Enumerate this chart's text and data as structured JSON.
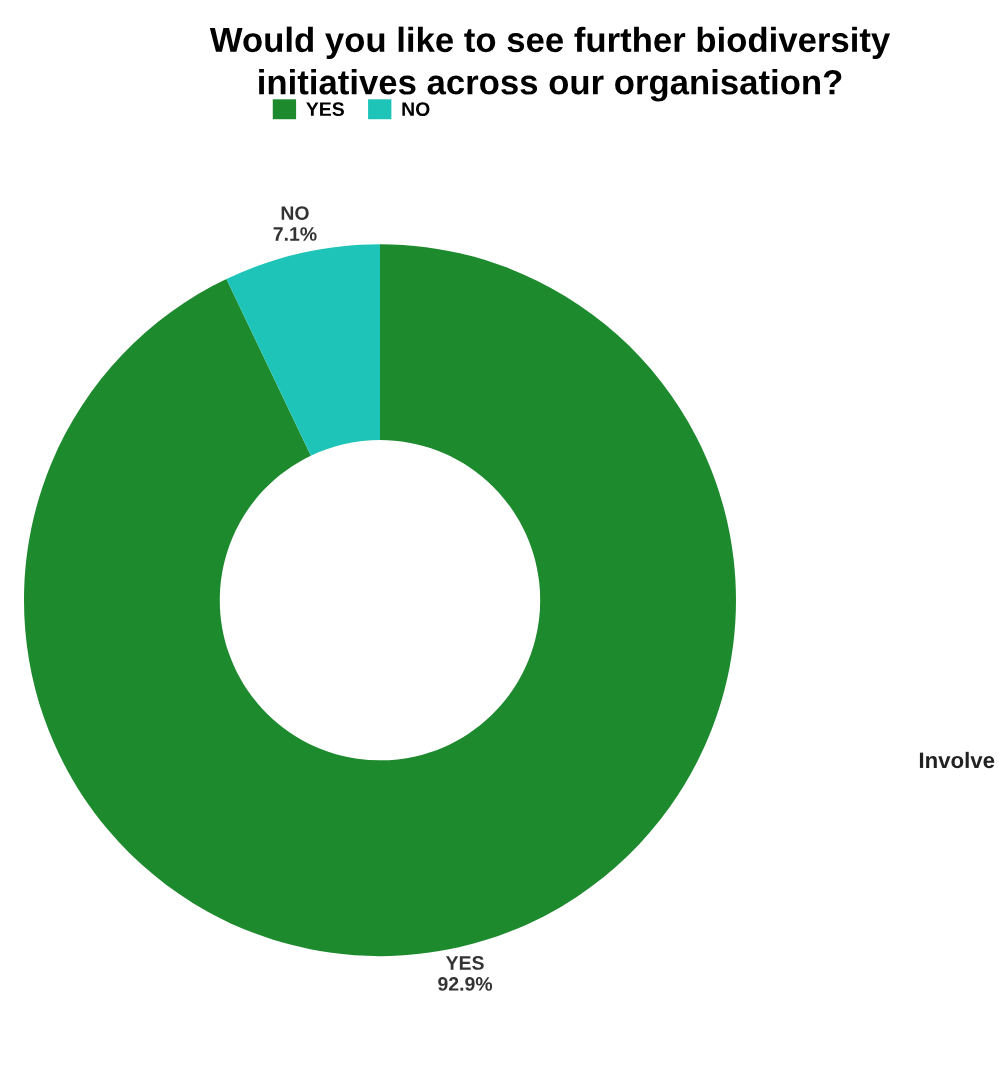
{
  "chart_data": {
    "type": "donut",
    "title": "Would you like to see further biodiversity\ninitiatives across our organisation?",
    "categories": [
      "YES",
      "NO"
    ],
    "values": [
      92.9,
      7.1
    ],
    "colors": [
      "#1e8a2e",
      "#1ec4b8"
    ],
    "value_labels": [
      "92.9%",
      "7.1%"
    ],
    "legend": "top",
    "annotations": [
      "Involve"
    ]
  }
}
